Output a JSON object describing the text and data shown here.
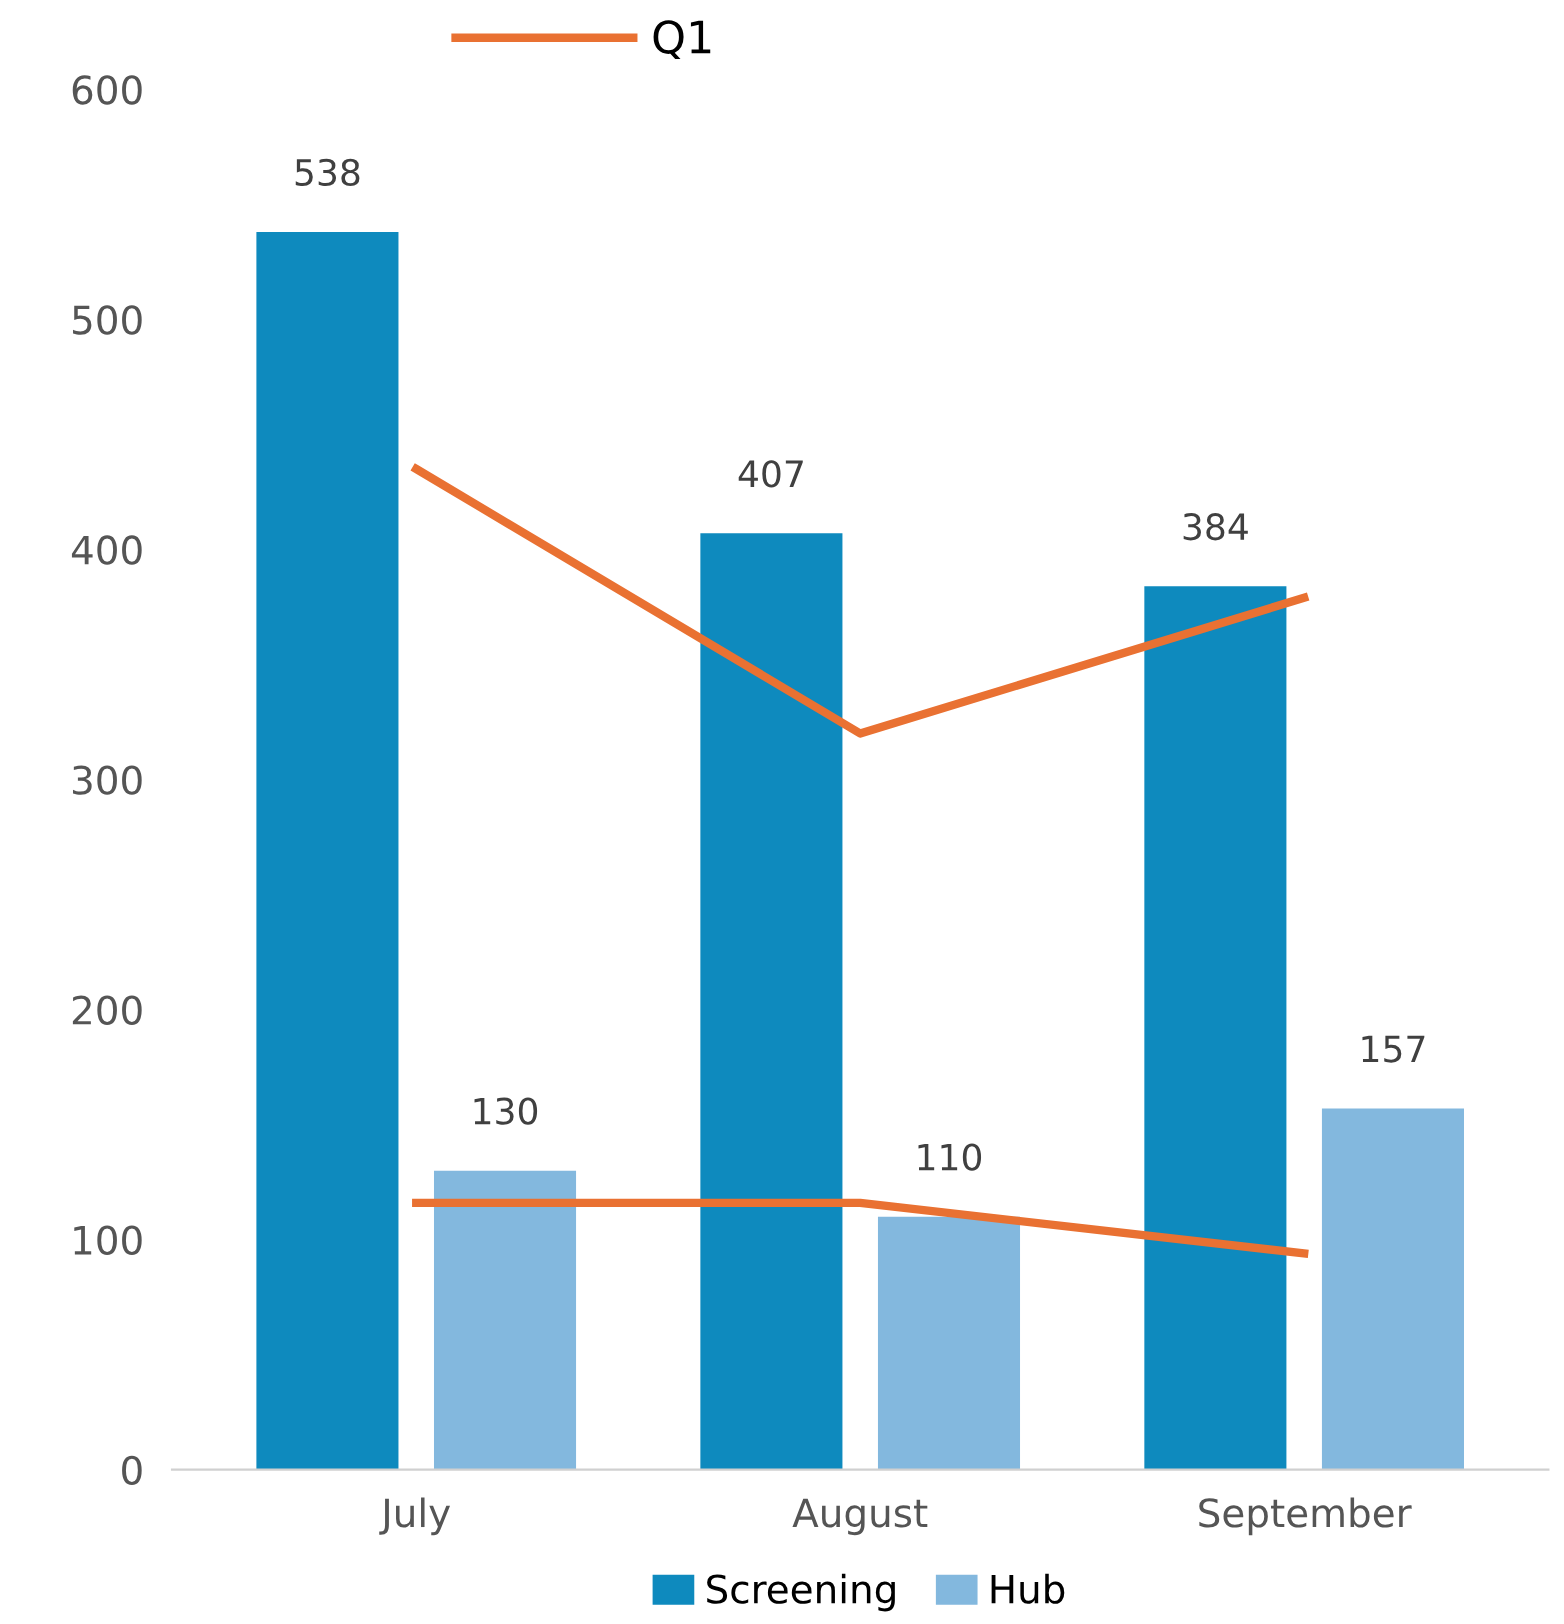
{
  "chart_data": {
    "type": "bar",
    "categories": [
      "July",
      "August",
      "September"
    ],
    "series": [
      {
        "name": "Screening",
        "color": "#0e8abe",
        "values": [
          538,
          407,
          384
        ],
        "value_labels": [
          "538",
          "407",
          "384"
        ]
      },
      {
        "name": "Hub",
        "color": "#83b8de",
        "values": [
          130,
          110,
          157
        ],
        "value_labels": [
          "130",
          "110",
          "157"
        ]
      },
      {
        "name": "Q1",
        "type": "line",
        "color": "#e97132",
        "values": [
          435,
          320,
          379
        ]
      },
      {
        "type": "line",
        "color": "#e97132",
        "values": [
          116,
          116,
          94
        ]
      }
    ],
    "ylim": [
      0,
      600
    ],
    "yticks": [
      0,
      100,
      200,
      300,
      400,
      500,
      600
    ],
    "grid": false,
    "legend": "bottom"
  }
}
